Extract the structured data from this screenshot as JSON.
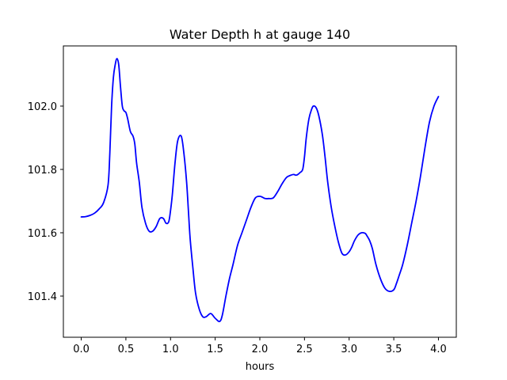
{
  "chart_data": {
    "type": "line",
    "title": "Water Depth h at gauge 140",
    "xlabel": "hours",
    "ylabel": "",
    "xlim": [
      -0.2,
      4.2
    ],
    "ylim": [
      101.27,
      102.19
    ],
    "grid": false,
    "legend": "none",
    "xticks": [
      0.0,
      0.5,
      1.0,
      1.5,
      2.0,
      2.5,
      3.0,
      3.5,
      4.0
    ],
    "xtick_labels": [
      "0.0",
      "0.5",
      "1.0",
      "1.5",
      "2.0",
      "2.5",
      "3.0",
      "3.5",
      "4.0"
    ],
    "yticks": [
      101.4,
      101.6,
      101.8,
      102.0
    ],
    "ytick_labels": [
      "101.4",
      "101.6",
      "101.8",
      "102.0"
    ],
    "series": [
      {
        "color": "#0000ff",
        "x": [
          0.0,
          0.05,
          0.1,
          0.15,
          0.2,
          0.25,
          0.3,
          0.32,
          0.34,
          0.36,
          0.38,
          0.4,
          0.42,
          0.44,
          0.46,
          0.48,
          0.5,
          0.52,
          0.55,
          0.58,
          0.6,
          0.62,
          0.65,
          0.68,
          0.72,
          0.76,
          0.8,
          0.84,
          0.88,
          0.92,
          0.95,
          0.98,
          1.0,
          1.02,
          1.05,
          1.08,
          1.12,
          1.15,
          1.18,
          1.2,
          1.22,
          1.25,
          1.28,
          1.32,
          1.36,
          1.4,
          1.45,
          1.5,
          1.55,
          1.58,
          1.62,
          1.66,
          1.7,
          1.75,
          1.8,
          1.85,
          1.9,
          1.95,
          2.0,
          2.03,
          2.06,
          2.1,
          2.15,
          2.2,
          2.25,
          2.3,
          2.35,
          2.38,
          2.4,
          2.42,
          2.45,
          2.48,
          2.5,
          2.52,
          2.55,
          2.58,
          2.6,
          2.63,
          2.66,
          2.7,
          2.73,
          2.76,
          2.8,
          2.84,
          2.88,
          2.92,
          2.96,
          3.0,
          3.03,
          3.06,
          3.1,
          3.14,
          3.18,
          3.2,
          3.23,
          3.26,
          3.3,
          3.35,
          3.4,
          3.45,
          3.5,
          3.53,
          3.56,
          3.6,
          3.65,
          3.7,
          3.75,
          3.8,
          3.85,
          3.9,
          3.95,
          4.0
        ],
        "y": [
          101.65,
          101.651,
          101.655,
          101.662,
          101.675,
          101.695,
          101.75,
          101.85,
          102.0,
          102.09,
          102.13,
          102.15,
          102.13,
          102.06,
          102.0,
          101.985,
          101.98,
          101.96,
          101.92,
          101.905,
          101.88,
          101.82,
          101.76,
          101.68,
          101.63,
          101.605,
          101.605,
          101.62,
          101.645,
          101.645,
          101.63,
          101.635,
          101.67,
          101.72,
          101.82,
          101.89,
          101.905,
          101.85,
          101.76,
          101.67,
          101.58,
          101.49,
          101.41,
          101.36,
          101.335,
          101.335,
          101.345,
          101.33,
          101.32,
          101.34,
          101.4,
          101.455,
          101.5,
          101.56,
          101.6,
          101.64,
          101.68,
          101.71,
          101.715,
          101.712,
          101.708,
          101.708,
          101.71,
          101.73,
          101.755,
          101.775,
          101.782,
          101.784,
          101.782,
          101.783,
          101.79,
          101.8,
          101.84,
          101.9,
          101.96,
          101.99,
          102.0,
          101.995,
          101.97,
          101.91,
          101.84,
          101.76,
          101.68,
          101.62,
          101.57,
          101.535,
          101.53,
          101.54,
          101.555,
          101.575,
          101.593,
          101.6,
          101.598,
          101.59,
          101.575,
          101.55,
          101.5,
          101.455,
          101.425,
          101.415,
          101.42,
          101.44,
          101.465,
          101.5,
          101.56,
          101.63,
          101.7,
          101.78,
          101.87,
          101.95,
          102.0,
          102.03
        ]
      }
    ]
  }
}
